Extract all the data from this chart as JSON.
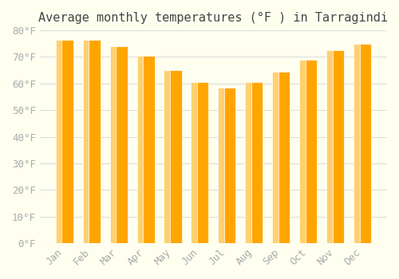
{
  "title": "Average monthly temperatures (°F ) in Tarragindi",
  "months": [
    "Jan",
    "Feb",
    "Mar",
    "Apr",
    "May",
    "Jun",
    "Jul",
    "Aug",
    "Sep",
    "Oct",
    "Nov",
    "Dec"
  ],
  "values": [
    76.5,
    76.5,
    74.0,
    70.5,
    65.0,
    60.5,
    58.5,
    60.5,
    64.5,
    69.0,
    72.5,
    75.0
  ],
  "bar_color_top": "#FFA500",
  "bar_color_bottom": "#FFD070",
  "ylim": [
    0,
    80
  ],
  "yticks": [
    0,
    10,
    20,
    30,
    40,
    50,
    60,
    70,
    80
  ],
  "ytick_labels": [
    "0°F",
    "10°F",
    "20°F",
    "30°F",
    "40°F",
    "50°F",
    "60°F",
    "70°F",
    "80°F"
  ],
  "background_color": "#FFFFF0",
  "grid_color": "#DDDDDD",
  "title_fontsize": 11,
  "tick_fontsize": 9,
  "tick_color": "#AAAAAA",
  "title_color": "#444444"
}
